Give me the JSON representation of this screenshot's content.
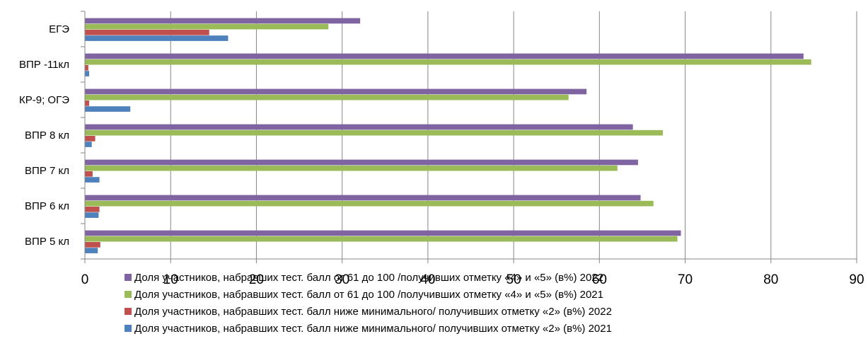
{
  "chart_data": {
    "type": "bar",
    "orientation": "horizontal",
    "categories": [
      "ВПР 5 кл",
      "ВПР 6 кл",
      "ВПР 7 кл",
      "ВПР 8 кл",
      "КР-9; ОГЭ",
      "ВПР -11кл",
      "ЕГЭ"
    ],
    "series": [
      {
        "name": "Доля участников, набравших тест. балл ниже  минимального/ получивших отметку «2» (в%) 2021",
        "color": "#4F81BD",
        "values": [
          1.5,
          1.6,
          1.7,
          0.8,
          5.3,
          0.5,
          16.7
        ]
      },
      {
        "name": "Доля участников, набравших тест. балл ниже  минимального/ получивших отметку «2» (в%) 2022",
        "color": "#C0504D",
        "values": [
          1.8,
          1.7,
          0.9,
          1.2,
          0.5,
          0.4,
          14.5
        ]
      },
      {
        "name": "Доля участников, набравших тест. балл от 61 до 100 /получивших отметку «4» и «5» (в%) 2021",
        "color": "#9BBB59",
        "values": [
          69.1,
          66.3,
          62.1,
          67.4,
          56.4,
          84.7,
          28.4
        ]
      },
      {
        "name": "Доля участников, набравших тест. балл от 61 до 100 /получивших отметку «4» и «5» (в%) 2022",
        "color": "#8064A2",
        "values": [
          69.5,
          64.8,
          64.5,
          63.9,
          58.5,
          83.8,
          32.1
        ]
      }
    ],
    "xlim": [
      0,
      90
    ],
    "ticks": [
      "0",
      "10",
      "20",
      "30",
      "40",
      "50",
      "60",
      "70",
      "80",
      "90"
    ],
    "grid": true,
    "legend_position": "bottom",
    "title": "",
    "xlabel": "",
    "ylabel": ""
  }
}
